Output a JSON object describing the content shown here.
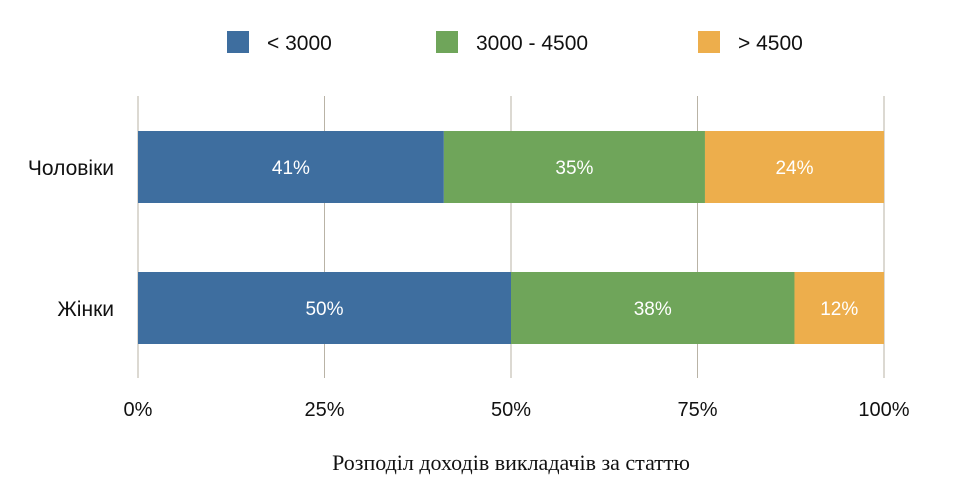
{
  "chart_data": {
    "type": "bar",
    "orientation": "horizontal",
    "stacked": true,
    "percent_stacked": true,
    "categories": [
      "Чоловіки",
      "Жінки"
    ],
    "series": [
      {
        "name": "< 3000",
        "color": "#3E6E9F",
        "values": [
          41,
          50
        ],
        "labels": [
          "41%",
          "50%"
        ]
      },
      {
        "name": "3000 - 4500",
        "color": "#6FA55A",
        "values": [
          35,
          38
        ],
        "labels": [
          "35%",
          "38%"
        ]
      },
      {
        "name": "> 4500",
        "color": "#EDAE4C",
        "values": [
          24,
          12
        ],
        "labels": [
          "24%",
          "12%"
        ]
      }
    ],
    "x_ticks": [
      {
        "value": 0,
        "label": "0%"
      },
      {
        "value": 25,
        "label": "25%"
      },
      {
        "value": 50,
        "label": "50%"
      },
      {
        "value": 75,
        "label": "75%"
      },
      {
        "value": 100,
        "label": "100%"
      }
    ],
    "xlim": [
      0,
      100
    ],
    "grid": "vertical",
    "legend_position": "top",
    "xlabel": "Розподіл доходів викладачів за статтю",
    "ylabel": "",
    "title": ""
  }
}
